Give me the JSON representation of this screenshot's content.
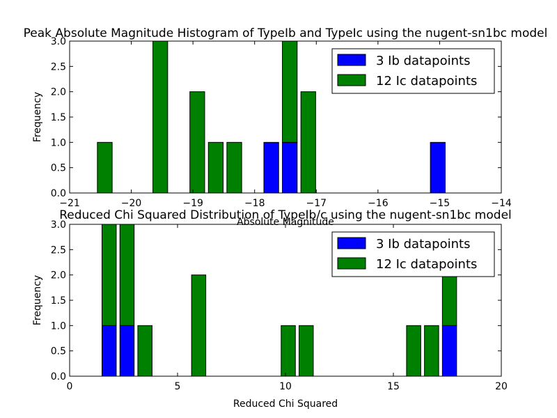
{
  "chart_data": [
    {
      "type": "bar",
      "stacked": true,
      "title": "Peak Absolute Magnitude Histogram of TypeIb and TypeIc using the nugent-sn1bc model",
      "xlabel": "Absolute Magnitude",
      "ylabel": "Frequency",
      "xlim": [
        -21,
        -14
      ],
      "ylim": [
        0,
        3
      ],
      "xticks": [
        -21,
        -20,
        -19,
        -18,
        -17,
        -16,
        -15,
        -14
      ],
      "yticks": [
        0.0,
        0.5,
        1.0,
        1.5,
        2.0,
        2.5,
        3.0
      ],
      "xtick_labels": [
        "−21",
        "−20",
        "−19",
        "−18",
        "−17",
        "−16",
        "−15",
        "−14"
      ],
      "ytick_labels": [
        "0.0",
        "0.5",
        "1.0",
        "1.5",
        "2.0",
        "2.5",
        "3.0"
      ],
      "bin_edges": [
        -20.55,
        -20.25,
        -19.95,
        -19.65,
        -19.35,
        -19.05,
        -18.75,
        -18.45,
        -18.15,
        -17.85,
        -17.55,
        -17.25,
        -16.95,
        -16.65,
        -16.35,
        -16.05,
        -15.75,
        -15.45,
        -15.15,
        -14.85
      ],
      "bar_width": 0.24,
      "legend_position": "upper right",
      "grid": false,
      "series": [
        {
          "name": "3 Ib datapoints",
          "color": "#0000ff",
          "values": [
            0,
            0,
            0,
            0,
            0,
            0,
            0,
            0,
            0,
            1,
            1,
            0,
            0,
            0,
            0,
            0,
            0,
            0,
            1
          ]
        },
        {
          "name": "12 Ic datapoints",
          "color": "#008000",
          "values": [
            1,
            0,
            0,
            3,
            0,
            2,
            1,
            1,
            0,
            0,
            2,
            2,
            0,
            0,
            0,
            0,
            0,
            0,
            0
          ]
        }
      ]
    },
    {
      "type": "bar",
      "stacked": true,
      "title": "Reduced Chi Squared Distribution of TypeIb/c using the nugent-sn1bc model",
      "xlabel": "Reduced Chi Squared",
      "ylabel": "Frequency",
      "xlim": [
        0,
        20
      ],
      "ylim": [
        0,
        3
      ],
      "xticks": [
        0,
        5,
        10,
        15,
        20
      ],
      "yticks": [
        0.0,
        0.5,
        1.0,
        1.5,
        2.0,
        2.5,
        3.0
      ],
      "xtick_labels": [
        "0",
        "5",
        "10",
        "15",
        "20"
      ],
      "ytick_labels": [
        "0.0",
        "0.5",
        "1.0",
        "1.5",
        "2.0",
        "2.5",
        "3.0"
      ],
      "bin_edges": [
        1.5,
        2.33,
        3.16,
        3.99,
        4.82,
        5.65,
        6.48,
        7.31,
        8.14,
        8.97,
        9.8,
        10.63,
        11.46,
        12.29,
        13.12,
        13.95,
        14.78,
        15.61,
        16.44,
        17.27,
        18.1
      ],
      "bar_width": 0.66,
      "legend_position": "upper right",
      "grid": false,
      "series": [
        {
          "name": "3 Ib datapoints",
          "color": "#0000ff",
          "values": [
            1,
            1,
            0,
            0,
            0,
            0,
            0,
            0,
            0,
            0,
            0,
            0,
            0,
            0,
            0,
            0,
            0,
            0,
            0,
            1
          ]
        },
        {
          "name": "12 Ic datapoints",
          "color": "#008000",
          "values": [
            2,
            2,
            1,
            0,
            0,
            2,
            0,
            0,
            0,
            0,
            1,
            1,
            0,
            0,
            0,
            0,
            0,
            1,
            1,
            1
          ]
        }
      ]
    }
  ]
}
